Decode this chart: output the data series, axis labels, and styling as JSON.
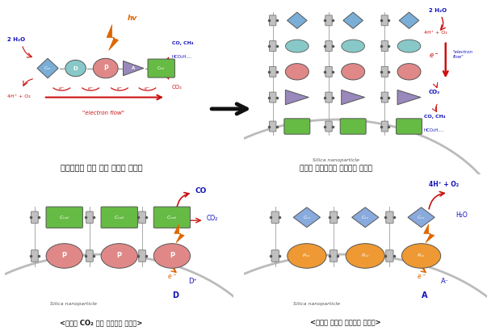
{
  "bg_color": "#ffffff",
  "quad_titles": [
    "인공광합성 분자 촉매 시스템 모식도",
    "모듈형 인공광합성 분자촉매 시스템",
    "<모듈형 CO₂ 환원 분자촉매 시스템>",
    "<모듈형 물산화 분자촉매 시스템>"
  ],
  "colors": {
    "cox_blue": "#7aaed6",
    "d_teal": "#88c8c8",
    "p_pink": "#e08888",
    "a_purple": "#9988bb",
    "cred_green": "#66bb44",
    "connector_gray": "#aaaaaa",
    "text_blue": "#1111bb",
    "text_red": "#cc1111",
    "arrow_red": "#cc1111",
    "arrow_orange": "#dd6600",
    "silica_gray": "#bbbbbb",
    "p_ox_orange": "#ee9933",
    "c_ox_blue": "#88aadd",
    "block_gray": "#c0c0c0"
  }
}
